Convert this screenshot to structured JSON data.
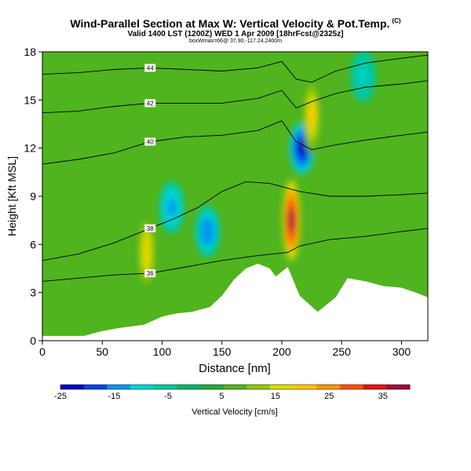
{
  "header": {
    "title": "Wind-Parallel Section at Max W: Vertical Velocity & Pot.Temp.",
    "copyright": "(C)",
    "valid_line": "Valid 1400 LST (1200Z) WED 1 Apr 2009 [18hrFcst@2325z]",
    "info_line": "boxWmax=66@ 37.90,-117.24,2400m"
  },
  "chart_data": {
    "type": "heatmap",
    "xlabel": "Distance [nm]",
    "ylabel": "Height [Kft MSL]",
    "xlim": [
      0,
      322
    ],
    "ylim": [
      0,
      18
    ],
    "x_ticks": [
      0,
      50,
      100,
      150,
      200,
      250,
      300
    ],
    "y_ticks": [
      0,
      3,
      6,
      9,
      12,
      15,
      18
    ],
    "colorbar": {
      "label": "Vertical Velocity [cm/s]",
      "range": [
        -25,
        40
      ],
      "tick_labels": [
        -25,
        -15,
        -5,
        5,
        15,
        25,
        35
      ],
      "colors": [
        "#0000c8",
        "#0046e6",
        "#0096f0",
        "#00d2d2",
        "#00c8a0",
        "#00b46e",
        "#1eaa3c",
        "#50b41e",
        "#96c800",
        "#dcdc00",
        "#ffc800",
        "#ff9600",
        "#ff5000",
        "#e61414",
        "#a00a3c"
      ]
    },
    "updraft_cores": [
      {
        "x": 208,
        "y": 7.5,
        "value": 38
      },
      {
        "x": 87,
        "y": 5.5,
        "value": 18
      },
      {
        "x": 225,
        "y": 14,
        "value": 20
      }
    ],
    "downdraft_cores": [
      {
        "x": 108,
        "y": 8.3,
        "value": -14
      },
      {
        "x": 138,
        "y": 6.8,
        "value": -15
      },
      {
        "x": 217,
        "y": 12,
        "value": -25
      },
      {
        "x": 268,
        "y": 16.5,
        "value": -8
      }
    ],
    "terrain": {
      "x": [
        0,
        10,
        20,
        35,
        50,
        65,
        85,
        100,
        112,
        125,
        140,
        150,
        160,
        170,
        180,
        190,
        195,
        200,
        205,
        215,
        230,
        245,
        255,
        262,
        270,
        285,
        300,
        312,
        322
      ],
      "y": [
        0.3,
        0.3,
        0.3,
        0.3,
        0.6,
        0.8,
        1.0,
        1.5,
        1.7,
        1.8,
        2.1,
        2.8,
        3.8,
        4.5,
        4.8,
        4.5,
        4.0,
        4.3,
        4.6,
        2.8,
        1.8,
        2.7,
        3.9,
        3.8,
        3.7,
        3.4,
        3.3,
        3.0,
        2.7
      ]
    },
    "theta_contours": [
      {
        "label": "36",
        "x": [
          0,
          30,
          60,
          90,
          120,
          150,
          180,
          205,
          215,
          240,
          270,
          300,
          322
        ],
        "y": [
          3.7,
          3.9,
          4.1,
          4.2,
          4.6,
          5.0,
          5.3,
          5.5,
          5.9,
          6.3,
          6.5,
          6.8,
          7.0
        ]
      },
      {
        "label": "38",
        "x": [
          0,
          30,
          60,
          90,
          110,
          130,
          150,
          170,
          190,
          205,
          215,
          240,
          270,
          300,
          322
        ],
        "y": [
          5.0,
          5.4,
          6.1,
          7.0,
          7.6,
          8.3,
          9.3,
          9.9,
          9.8,
          9.5,
          9.3,
          9.0,
          9.0,
          9.1,
          9.2
        ]
      },
      {
        "label": "40",
        "x": [
          0,
          30,
          60,
          90,
          120,
          150,
          180,
          200,
          212,
          225,
          245,
          270,
          300,
          322
        ],
        "y": [
          11.0,
          11.3,
          11.7,
          12.4,
          12.7,
          12.8,
          13.1,
          13.7,
          12.4,
          11.9,
          12.2,
          12.5,
          12.8,
          13.0
        ]
      },
      {
        "label": "42",
        "x": [
          0,
          30,
          60,
          90,
          120,
          150,
          180,
          200,
          212,
          225,
          245,
          270,
          300,
          322
        ],
        "y": [
          14.2,
          14.3,
          14.6,
          14.8,
          14.8,
          14.8,
          15.1,
          15.6,
          14.5,
          14.9,
          15.4,
          15.8,
          16.0,
          16.2
        ]
      },
      {
        "label": "44",
        "x": [
          0,
          30,
          60,
          90,
          120,
          150,
          180,
          200,
          212,
          225,
          245,
          270,
          300,
          322
        ],
        "y": [
          16.6,
          16.7,
          16.9,
          17.0,
          16.9,
          16.8,
          17.0,
          17.4,
          16.3,
          16.1,
          16.8,
          17.3,
          17.6,
          17.8
        ]
      }
    ]
  }
}
